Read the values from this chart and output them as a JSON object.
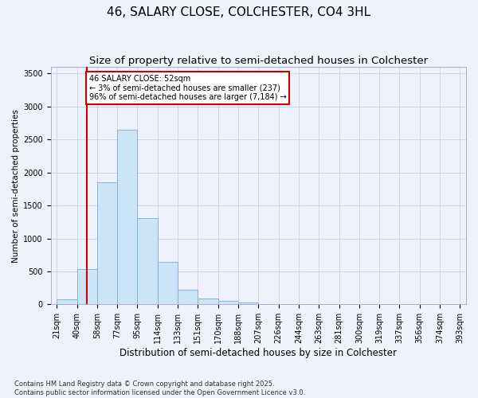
{
  "title": "46, SALARY CLOSE, COLCHESTER, CO4 3HL",
  "subtitle": "Size of property relative to semi-detached houses in Colchester",
  "xlabel": "Distribution of semi-detached houses by size in Colchester",
  "ylabel": "Number of semi-detached properties",
  "bin_edges": [
    "21sqm",
    "40sqm",
    "58sqm",
    "77sqm",
    "95sqm",
    "114sqm",
    "133sqm",
    "151sqm",
    "170sqm",
    "188sqm",
    "207sqm",
    "226sqm",
    "244sqm",
    "263sqm",
    "281sqm",
    "300sqm",
    "319sqm",
    "337sqm",
    "356sqm",
    "374sqm",
    "393sqm"
  ],
  "values": [
    75,
    530,
    1855,
    2650,
    1310,
    645,
    220,
    90,
    55,
    30,
    10,
    5,
    5,
    5,
    5,
    5,
    5,
    5,
    5,
    5
  ],
  "bar_color": "#cce4f5",
  "bar_edge_color": "#7aaed6",
  "vline_position": 1.5,
  "vline_color": "#cc0000",
  "annotation_text": "46 SALARY CLOSE: 52sqm\n← 3% of semi-detached houses are smaller (237)\n96% of semi-detached houses are larger (7,184) →",
  "annotation_box_facecolor": "#ffffff",
  "annotation_box_edgecolor": "#cc0000",
  "ylim": [
    0,
    3600
  ],
  "yticks": [
    0,
    500,
    1000,
    1500,
    2000,
    2500,
    3000,
    3500
  ],
  "background_color": "#eef2fc",
  "grid_color": "#c8cfe8",
  "footer": "Contains HM Land Registry data © Crown copyright and database right 2025.\nContains public sector information licensed under the Open Government Licence v3.0.",
  "title_fontsize": 11,
  "subtitle_fontsize": 9.5,
  "xlabel_fontsize": 8.5,
  "ylabel_fontsize": 7.5,
  "tick_fontsize": 7,
  "annotation_fontsize": 7,
  "footer_fontsize": 6
}
